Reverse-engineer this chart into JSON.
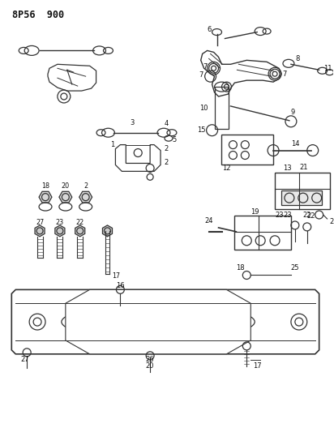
{
  "title": "8P56  900",
  "bg_color": "#ffffff",
  "line_color": "#333333",
  "figsize": [
    4.12,
    5.33
  ],
  "dpi": 100
}
